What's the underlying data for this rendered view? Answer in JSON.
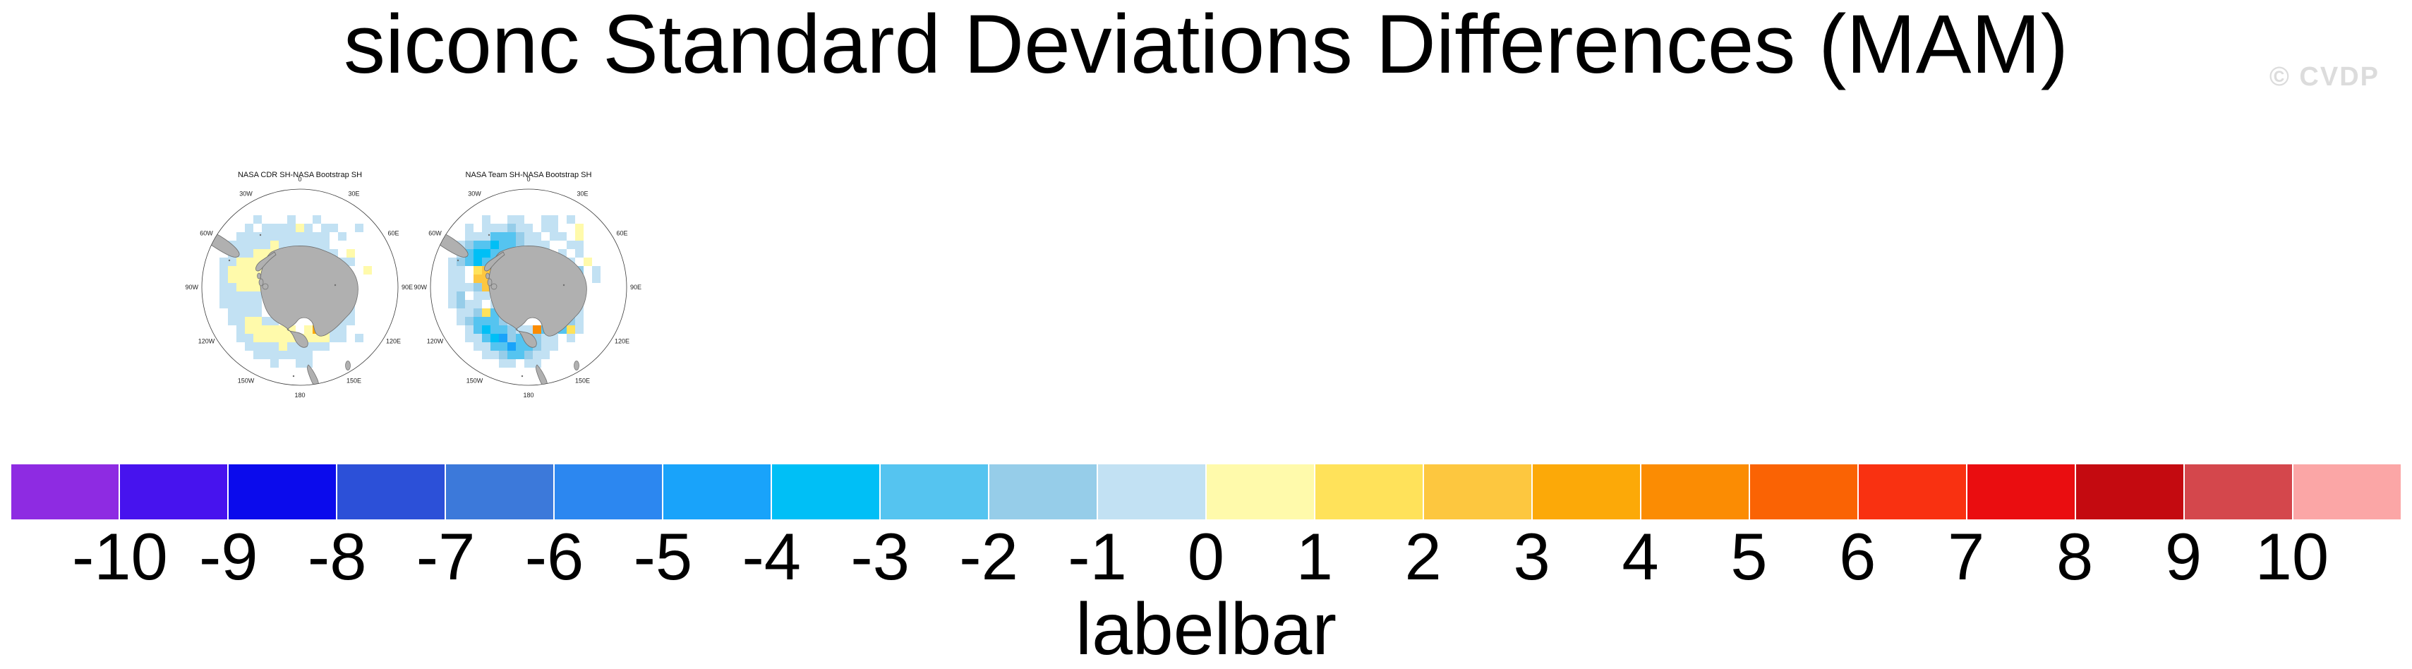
{
  "header": {
    "title": "siconc Standard Deviations Differences (MAM)",
    "watermark": "© CVDP"
  },
  "labelbar": {
    "title": "labelbar",
    "tick_labels": [
      "-10",
      "-9",
      "-8",
      "-7",
      "-6",
      "-5",
      "-4",
      "-3",
      "-2",
      "-1",
      "0",
      "1",
      "2",
      "3",
      "4",
      "5",
      "6",
      "7",
      "8",
      "9",
      "10"
    ]
  },
  "chart_data": {
    "type": "heatmap",
    "title": "siconc Standard Deviations Differences (MAM)",
    "panels": [
      {
        "title": "NASA CDR SH-NASA Bootstrap SH",
        "grid": [
          ".......................",
          ".......................",
          ".......................",
          "......p...p..p.........",
          ".....p.ppppyp.pp..p....",
          "....ppppppppppp.p......",
          "...pppppypppppp........",
          "...pppyyyyagpppp.y.....",
          "..ppyyyyyy...ppppp.....",
          "..pyyyyyy.....ppp..y...",
          "..pyyyyy.......pll.....",
          "..ppyyy........ppp.....",
          "..ppppp........ppo.....",
          "..ppppp.......ppsp.....",
          "...pppp.p.....pmpp.....",
          "...ppyypp....ypppp.....",
          "....pyyyyyy.yaypp......",
          "....ppyyyyyyyyypp.p....",
          ".....ppppyppppp........",
          "......ppppppp..........",
          "........p..pp..........",
          ".......................",
          "......................."
        ]
      },
      {
        "title": "NASA Team SH-NASA Bootstrap SH",
        "grid": [
          ".......................",
          ".......................",
          ".......................",
          "......p..pp..pp.p......",
          "....p.ppplpp.pp..y.....",
          "....pppssslpp.pp.y.....",
          "...plssdsslppp..pp.....",
          "...psddssllp...p.p.....",
          "..plsdsslY....plp.y....",
          "..pp.YgggY....plll.p...",
          "..pp.ggggY.....pll.p...",
          "..ppplgg.......plp.....",
          "..pl.pp........plo.....",
          "..plpp.p......pslp.....",
          "...pplYsp.....pssp.....",
          "...plssslp....pslp.....",
          "....psdsslppospsYp.....",
          "....ppsdmlsslpp.p......",
          ".....ppssmsslpp........",
          "......pplsslpp.........",
          "........pp.pp..........",
          ".......................",
          "......................."
        ]
      }
    ],
    "ring_labels": [
      {
        "angle": 0,
        "label": "0"
      },
      {
        "angle": 30,
        "label": "30E"
      },
      {
        "angle": 60,
        "label": "60E"
      },
      {
        "angle": 90,
        "label": "90E"
      },
      {
        "angle": 120,
        "label": "120E"
      },
      {
        "angle": 150,
        "label": "150E"
      },
      {
        "angle": 180,
        "label": "180"
      },
      {
        "angle": 210,
        "label": "150W"
      },
      {
        "angle": 240,
        "label": "120W"
      },
      {
        "angle": 270,
        "label": "90W"
      },
      {
        "angle": 300,
        "label": "60W"
      },
      {
        "angle": 330,
        "label": "30W"
      }
    ],
    "labelbar": {
      "levels": [
        -10,
        -9,
        -8,
        -7,
        -6,
        -5,
        -4,
        -3,
        -2,
        -1,
        0,
        1,
        2,
        3,
        4,
        5,
        6,
        7,
        8,
        9,
        10
      ],
      "colors": [
        "#8E2BE2",
        "#4713EE",
        "#0B0BEC",
        "#2C50D8",
        "#3C79DA",
        "#2C87F0",
        "#19A3FA",
        "#00BFF6",
        "#55C4F0",
        "#96CDE9",
        "#C2E1F3",
        "#FFFAAB",
        "#FFE25A",
        "#FDC73F",
        "#FCA908",
        "#FB8C03",
        "#FA6304",
        "#F93111",
        "#EA0D10",
        "#C40A10",
        "#D4474C",
        "#FBA6A6"
      ],
      "title": "labelbar"
    },
    "cell_color_index": {
      "b": 5,
      "m": 6,
      "d": 7,
      "s": 8,
      "l": 9,
      "p": 10,
      "y": 11,
      "Y": 12,
      "g": 13,
      "a": 14,
      "o": 15
    },
    "cell_value_bands": {
      "b": "-6 to -5",
      "m": "-5 to -4",
      "d": "-4 to -3",
      "s": "-3 to -2",
      "l": "-2 to -1",
      "p": "-1 to 0",
      "y": "0 to 1",
      "Y": "1 to 2",
      "g": "2 to 3",
      "a": "3 to 4",
      "o": "4 to 5"
    },
    "land_color": "#B0B0B0",
    "coast_color": "#6E6E6E",
    "rim_color": "#3A3A3A"
  }
}
